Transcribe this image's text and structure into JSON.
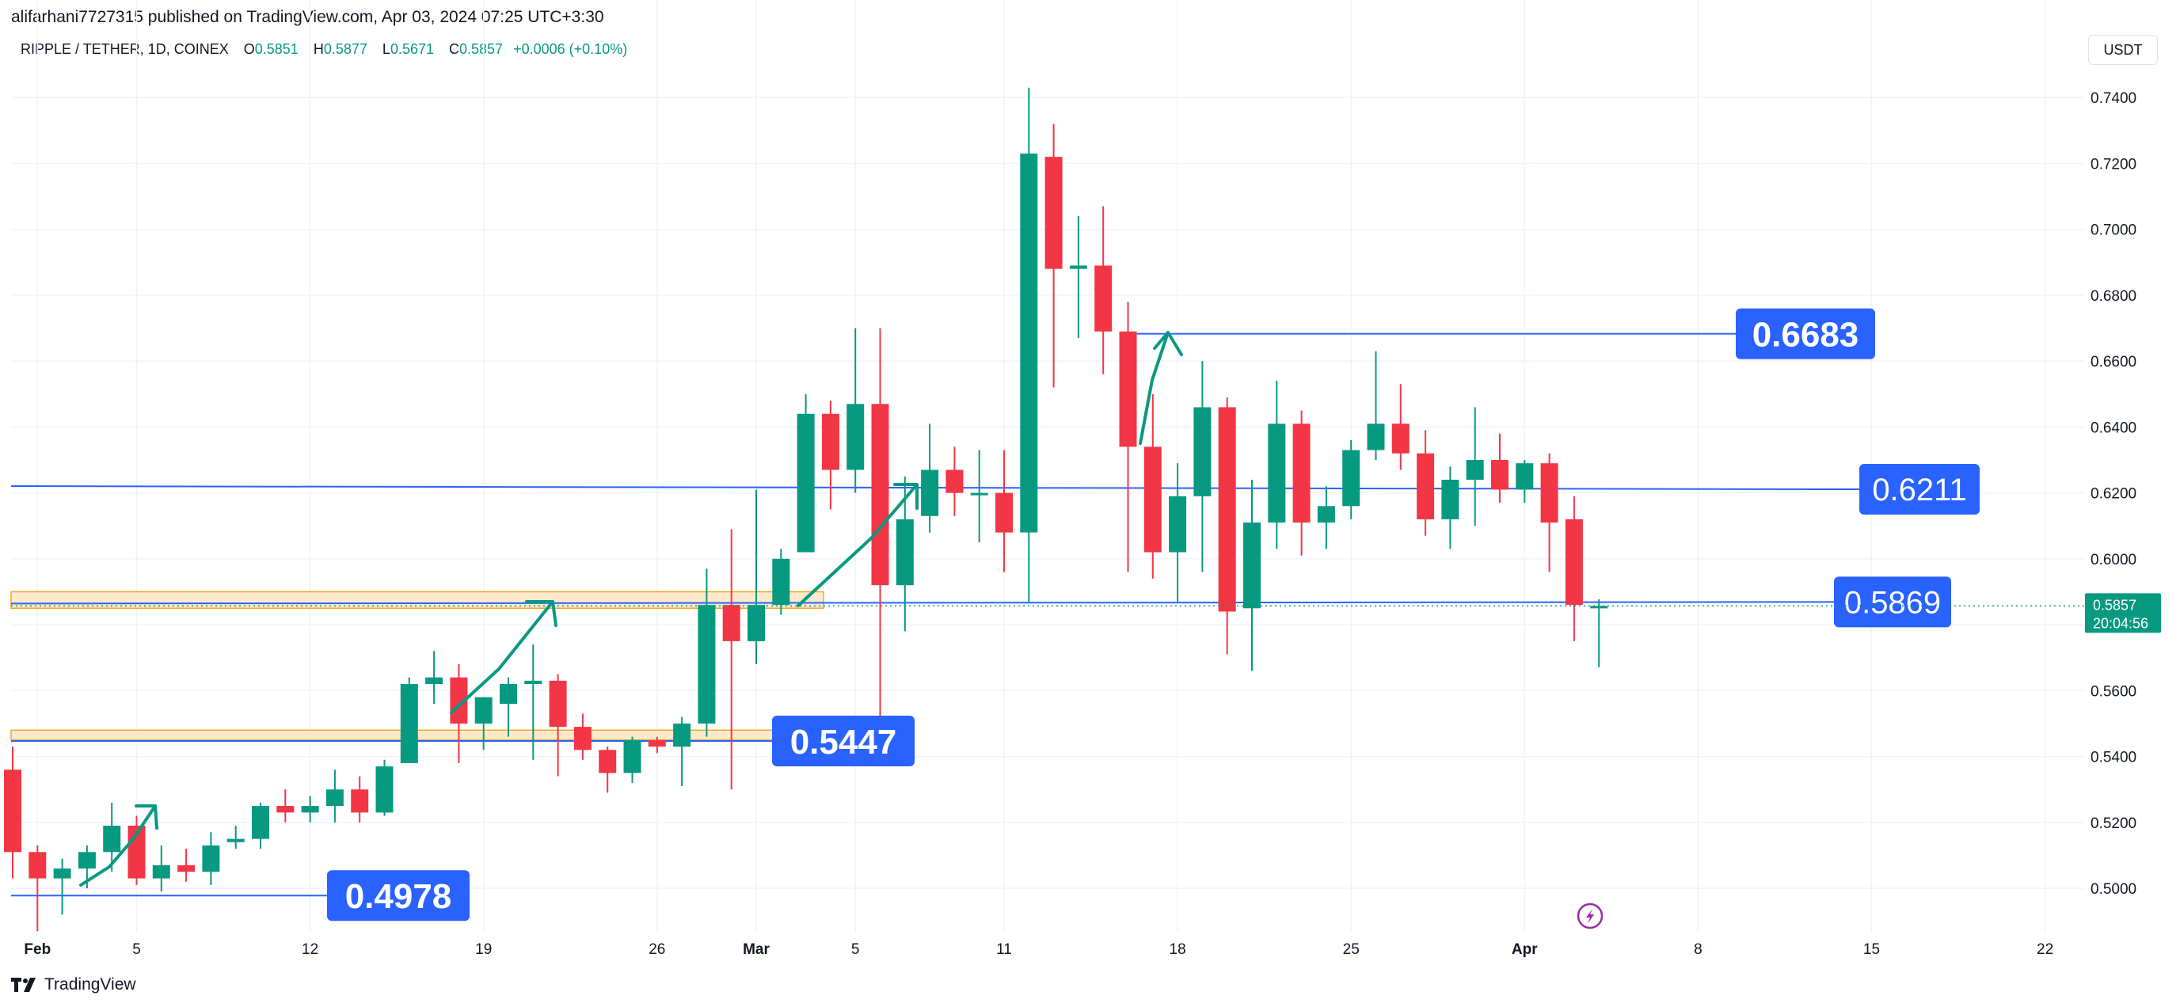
{
  "header": {
    "published": "alifarhani7727315 published on TradingView.com, Apr 03, 2024 07:25 UTC+3:30"
  },
  "legend": {
    "symbol": "RIPPLE / TETHER, 1D, COINEX",
    "o_label": "O",
    "o": "0.5851",
    "h_label": "H",
    "h": "0.5877",
    "l_label": "L",
    "l": "0.5671",
    "c_label": "C",
    "c": "0.5857",
    "change": "+0.0006 (+0.10%)"
  },
  "currency_button": "USDT",
  "footer": {
    "brand": "TradingView"
  },
  "colors": {
    "up": "#089981",
    "down": "#f23645",
    "level_line": "#2962ff",
    "label_bg": "#2962ff",
    "zone_fill": "#fde9cc",
    "zone_border": "#f5a623",
    "arrow": "#089981",
    "grid": "#f0f3fa",
    "price_tag": "#089981"
  },
  "chart_data": {
    "type": "candlestick",
    "ylim": [
      0.488,
      0.7475
    ],
    "y_ticks": [
      "0.5000",
      "0.5200",
      "0.5400",
      "0.5600",
      "0.5800",
      "0.6000",
      "0.6200",
      "0.6400",
      "0.6600",
      "0.6800",
      "0.7000",
      "0.7200",
      "0.7400"
    ],
    "x_ticks": [
      {
        "label": "Feb",
        "date": "2024-02-01",
        "bold": true
      },
      {
        "label": "5",
        "date": "2024-02-05"
      },
      {
        "label": "12",
        "date": "2024-02-12"
      },
      {
        "label": "19",
        "date": "2024-02-19"
      },
      {
        "label": "26",
        "date": "2024-02-26"
      },
      {
        "label": "Mar",
        "date": "2024-03-01",
        "bold": true
      },
      {
        "label": "5",
        "date": "2024-03-05"
      },
      {
        "label": "11",
        "date": "2024-03-11"
      },
      {
        "label": "18",
        "date": "2024-03-18"
      },
      {
        "label": "25",
        "date": "2024-03-25"
      },
      {
        "label": "Apr",
        "date": "2024-04-01",
        "bold": true
      },
      {
        "label": "8",
        "date": "2024-04-08"
      },
      {
        "label": "15",
        "date": "2024-04-15"
      },
      {
        "label": "22",
        "date": "2024-04-22"
      }
    ],
    "candles": [
      {
        "date": "2024-01-31",
        "o": 0.536,
        "h": 0.543,
        "l": 0.503,
        "c": 0.511
      },
      {
        "date": "2024-02-01",
        "o": 0.511,
        "h": 0.513,
        "l": 0.487,
        "c": 0.503
      },
      {
        "date": "2024-02-02",
        "o": 0.503,
        "h": 0.509,
        "l": 0.492,
        "c": 0.506
      },
      {
        "date": "2024-02-03",
        "o": 0.506,
        "h": 0.513,
        "l": 0.5,
        "c": 0.511
      },
      {
        "date": "2024-02-04",
        "o": 0.511,
        "h": 0.526,
        "l": 0.505,
        "c": 0.519
      },
      {
        "date": "2024-02-05",
        "o": 0.519,
        "h": 0.522,
        "l": 0.501,
        "c": 0.503
      },
      {
        "date": "2024-02-06",
        "o": 0.503,
        "h": 0.513,
        "l": 0.499,
        "c": 0.507
      },
      {
        "date": "2024-02-07",
        "o": 0.507,
        "h": 0.512,
        "l": 0.502,
        "c": 0.505
      },
      {
        "date": "2024-02-08",
        "o": 0.505,
        "h": 0.517,
        "l": 0.501,
        "c": 0.513
      },
      {
        "date": "2024-02-09",
        "o": 0.514,
        "h": 0.519,
        "l": 0.512,
        "c": 0.515
      },
      {
        "date": "2024-02-10",
        "o": 0.515,
        "h": 0.526,
        "l": 0.512,
        "c": 0.525
      },
      {
        "date": "2024-02-11",
        "o": 0.525,
        "h": 0.53,
        "l": 0.52,
        "c": 0.523
      },
      {
        "date": "2024-02-12",
        "o": 0.523,
        "h": 0.528,
        "l": 0.52,
        "c": 0.525
      },
      {
        "date": "2024-02-13",
        "o": 0.525,
        "h": 0.536,
        "l": 0.52,
        "c": 0.53
      },
      {
        "date": "2024-02-14",
        "o": 0.53,
        "h": 0.534,
        "l": 0.52,
        "c": 0.523
      },
      {
        "date": "2024-02-15",
        "o": 0.523,
        "h": 0.539,
        "l": 0.522,
        "c": 0.537
      },
      {
        "date": "2024-02-16",
        "o": 0.538,
        "h": 0.564,
        "l": 0.538,
        "c": 0.562
      },
      {
        "date": "2024-02-17",
        "o": 0.562,
        "h": 0.572,
        "l": 0.556,
        "c": 0.564
      },
      {
        "date": "2024-02-18",
        "o": 0.564,
        "h": 0.568,
        "l": 0.538,
        "c": 0.55
      },
      {
        "date": "2024-02-19",
        "o": 0.55,
        "h": 0.558,
        "l": 0.542,
        "c": 0.558
      },
      {
        "date": "2024-02-20",
        "o": 0.556,
        "h": 0.564,
        "l": 0.546,
        "c": 0.562
      },
      {
        "date": "2024-02-21",
        "o": 0.562,
        "h": 0.574,
        "l": 0.539,
        "c": 0.563
      },
      {
        "date": "2024-02-22",
        "o": 0.563,
        "h": 0.565,
        "l": 0.534,
        "c": 0.549
      },
      {
        "date": "2024-02-23",
        "o": 0.549,
        "h": 0.553,
        "l": 0.539,
        "c": 0.542
      },
      {
        "date": "2024-02-24",
        "o": 0.542,
        "h": 0.543,
        "l": 0.529,
        "c": 0.535
      },
      {
        "date": "2024-02-25",
        "o": 0.535,
        "h": 0.546,
        "l": 0.532,
        "c": 0.545
      },
      {
        "date": "2024-02-26",
        "o": 0.545,
        "h": 0.546,
        "l": 0.541,
        "c": 0.543
      },
      {
        "date": "2024-02-27",
        "o": 0.543,
        "h": 0.552,
        "l": 0.531,
        "c": 0.55
      },
      {
        "date": "2024-02-28",
        "o": 0.55,
        "h": 0.597,
        "l": 0.546,
        "c": 0.586
      },
      {
        "date": "2024-02-29",
        "o": 0.586,
        "h": 0.609,
        "l": 0.53,
        "c": 0.575
      },
      {
        "date": "2024-03-01",
        "o": 0.575,
        "h": 0.621,
        "l": 0.568,
        "c": 0.586
      },
      {
        "date": "2024-03-02",
        "o": 0.586,
        "h": 0.603,
        "l": 0.583,
        "c": 0.6
      },
      {
        "date": "2024-03-03",
        "o": 0.602,
        "h": 0.65,
        "l": 0.602,
        "c": 0.644
      },
      {
        "date": "2024-03-04",
        "o": 0.644,
        "h": 0.648,
        "l": 0.615,
        "c": 0.627
      },
      {
        "date": "2024-03-05",
        "o": 0.627,
        "h": 0.67,
        "l": 0.62,
        "c": 0.647
      },
      {
        "date": "2024-03-06",
        "o": 0.647,
        "h": 0.67,
        "l": 0.537,
        "c": 0.592
      },
      {
        "date": "2024-03-07",
        "o": 0.592,
        "h": 0.625,
        "l": 0.578,
        "c": 0.612
      },
      {
        "date": "2024-03-08",
        "o": 0.613,
        "h": 0.641,
        "l": 0.608,
        "c": 0.627
      },
      {
        "date": "2024-03-09",
        "o": 0.627,
        "h": 0.634,
        "l": 0.613,
        "c": 0.62
      },
      {
        "date": "2024-03-10",
        "o": 0.62,
        "h": 0.633,
        "l": 0.605,
        "c": 0.62
      },
      {
        "date": "2024-03-11",
        "o": 0.62,
        "h": 0.633,
        "l": 0.596,
        "c": 0.608
      },
      {
        "date": "2024-03-12",
        "o": 0.608,
        "h": 0.743,
        "l": 0.587,
        "c": 0.723
      },
      {
        "date": "2024-03-13",
        "o": 0.722,
        "h": 0.732,
        "l": 0.652,
        "c": 0.688
      },
      {
        "date": "2024-03-14",
        "o": 0.688,
        "h": 0.704,
        "l": 0.667,
        "c": 0.689
      },
      {
        "date": "2024-03-15",
        "o": 0.689,
        "h": 0.707,
        "l": 0.656,
        "c": 0.669
      },
      {
        "date": "2024-03-16",
        "o": 0.669,
        "h": 0.678,
        "l": 0.596,
        "c": 0.634
      },
      {
        "date": "2024-03-17",
        "o": 0.634,
        "h": 0.65,
        "l": 0.594,
        "c": 0.602
      },
      {
        "date": "2024-03-18",
        "o": 0.602,
        "h": 0.629,
        "l": 0.587,
        "c": 0.619
      },
      {
        "date": "2024-03-19",
        "o": 0.619,
        "h": 0.66,
        "l": 0.596,
        "c": 0.646
      },
      {
        "date": "2024-03-20",
        "o": 0.646,
        "h": 0.649,
        "l": 0.571,
        "c": 0.584
      },
      {
        "date": "2024-03-21",
        "o": 0.585,
        "h": 0.624,
        "l": 0.566,
        "c": 0.611
      },
      {
        "date": "2024-03-22",
        "o": 0.611,
        "h": 0.654,
        "l": 0.603,
        "c": 0.641
      },
      {
        "date": "2024-03-23",
        "o": 0.641,
        "h": 0.645,
        "l": 0.601,
        "c": 0.611
      },
      {
        "date": "2024-03-24",
        "o": 0.611,
        "h": 0.622,
        "l": 0.603,
        "c": 0.616
      },
      {
        "date": "2024-03-25",
        "o": 0.616,
        "h": 0.636,
        "l": 0.612,
        "c": 0.633
      },
      {
        "date": "2024-03-26",
        "o": 0.633,
        "h": 0.663,
        "l": 0.63,
        "c": 0.641
      },
      {
        "date": "2024-03-27",
        "o": 0.641,
        "h": 0.653,
        "l": 0.627,
        "c": 0.632
      },
      {
        "date": "2024-03-28",
        "o": 0.632,
        "h": 0.639,
        "l": 0.607,
        "c": 0.612
      },
      {
        "date": "2024-03-29",
        "o": 0.612,
        "h": 0.628,
        "l": 0.603,
        "c": 0.624
      },
      {
        "date": "2024-03-30",
        "o": 0.624,
        "h": 0.646,
        "l": 0.61,
        "c": 0.63
      },
      {
        "date": "2024-03-31",
        "o": 0.63,
        "h": 0.638,
        "l": 0.617,
        "c": 0.621
      },
      {
        "date": "2024-04-01",
        "o": 0.621,
        "h": 0.63,
        "l": 0.617,
        "c": 0.629
      },
      {
        "date": "2024-04-02",
        "o": 0.629,
        "h": 0.632,
        "l": 0.596,
        "c": 0.611
      },
      {
        "date": "2024-04-03",
        "o": 0.612,
        "h": 0.619,
        "l": 0.575,
        "c": 0.586
      },
      {
        "date": "2024-04-04",
        "o": 0.5851,
        "h": 0.5877,
        "l": 0.5671,
        "c": 0.5857
      }
    ],
    "levels": [
      {
        "label": "0.6683",
        "value": 0.6683
      },
      {
        "label": "0.6211",
        "value": 0.6211
      },
      {
        "label": "0.5869",
        "value": 0.5869
      },
      {
        "label": "0.5447",
        "value": 0.5447
      },
      {
        "label": "0.4978",
        "value": 0.4978
      }
    ],
    "zones": [
      {
        "from": 0.585,
        "to": 0.59
      },
      {
        "from": 0.545,
        "to": 0.548
      }
    ],
    "last_price": {
      "value": "0.5857",
      "countdown": "20:04:56"
    }
  }
}
